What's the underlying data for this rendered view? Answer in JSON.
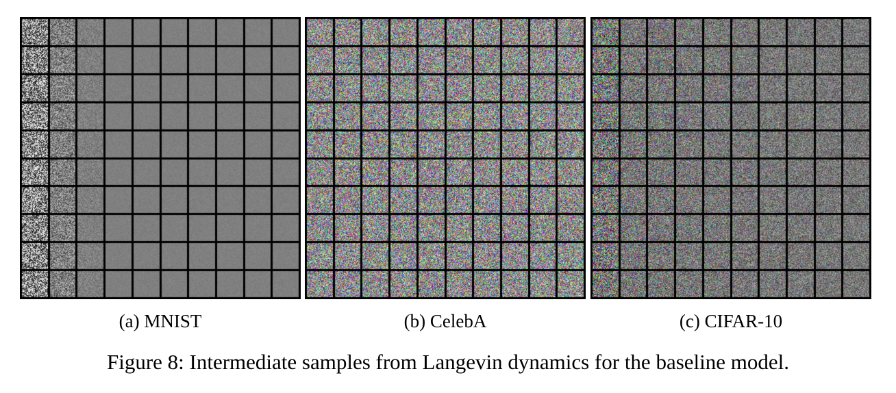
{
  "figure": {
    "caption": "Figure 8: Intermediate samples from Langevin dynamics for the baseline model."
  },
  "panels": [
    {
      "id": "a",
      "caption": "(a) MNIST",
      "grid_rows": 10,
      "grid_cols": 10,
      "color_mode": "grayscale"
    },
    {
      "id": "b",
      "caption": "(b) CelebA",
      "grid_rows": 10,
      "grid_cols": 10,
      "color_mode": "rgb-noise"
    },
    {
      "id": "c",
      "caption": "(c) CIFAR-10",
      "grid_rows": 10,
      "grid_cols": 10,
      "color_mode": "rgb-noise-fading"
    }
  ]
}
